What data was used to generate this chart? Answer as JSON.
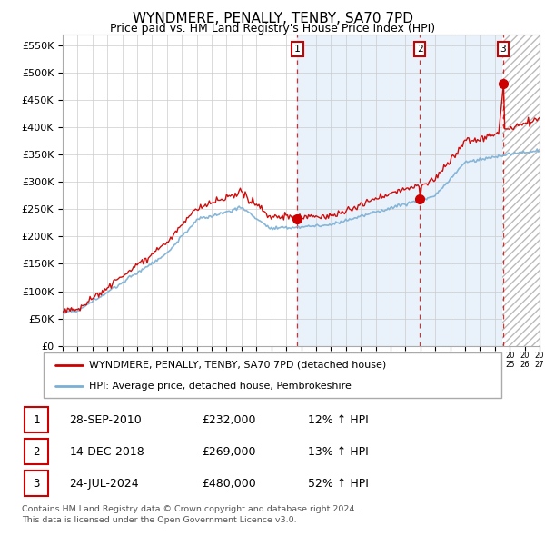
{
  "title": "WYNDMERE, PENALLY, TENBY, SA70 7PD",
  "subtitle": "Price paid vs. HM Land Registry's House Price Index (HPI)",
  "legend_line1": "WYNDMERE, PENALLY, TENBY, SA70 7PD (detached house)",
  "legend_line2": "HPI: Average price, detached house, Pembrokeshire",
  "red_color": "#cc0000",
  "blue_fill_color": "#d0e4f7",
  "blue_line_color": "#7bafd4",
  "background_color": "#ffffff",
  "grid_color": "#cccccc",
  "annotation_box_color": "#cc0000",
  "sale1_date": 2010.75,
  "sale2_date": 2018.96,
  "sale3_date": 2024.56,
  "sale1_price": 232000,
  "sale2_price": 269000,
  "sale3_price": 480000,
  "ylim_max": 570000,
  "ylim_min": 0,
  "xmin": 1995,
  "xmax": 2027,
  "footer1": "Contains HM Land Registry data © Crown copyright and database right 2024.",
  "footer2": "This data is licensed under the Open Government Licence v3.0.",
  "table_row1": [
    "1",
    "28-SEP-2010",
    "£232,000",
    "12% ↑ HPI"
  ],
  "table_row2": [
    "2",
    "14-DEC-2018",
    "£269,000",
    "13% ↑ HPI"
  ],
  "table_row3": [
    "3",
    "24-JUL-2024",
    "£480,000",
    "52% ↑ HPI"
  ]
}
